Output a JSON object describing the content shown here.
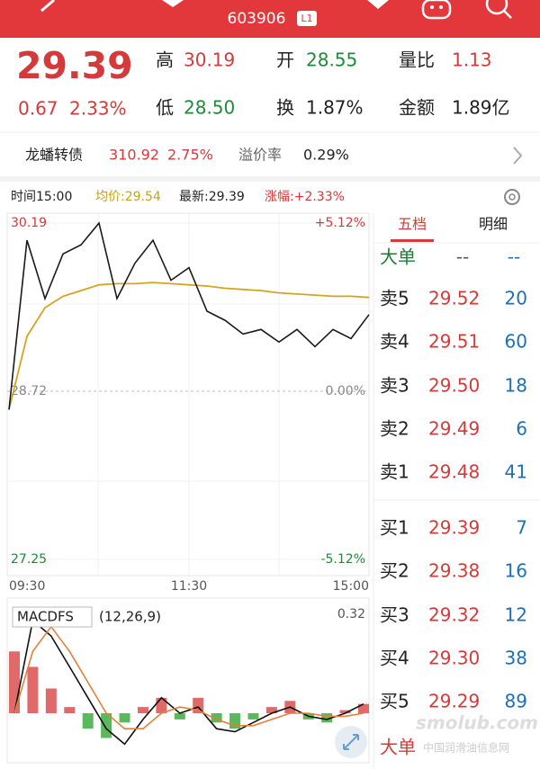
{
  "header": {
    "code": "603906",
    "badge": "L1"
  },
  "quote": {
    "price": "29.39",
    "change": "0.67",
    "change_pct": "2.33%",
    "stats": [
      {
        "label": "高",
        "value": "30.19",
        "color": "#d43a3a"
      },
      {
        "label": "开",
        "value": "28.55",
        "color": "#1f8a3a"
      },
      {
        "label": "量比",
        "value": "1.13",
        "color": "#d43a3a"
      },
      {
        "label": "低",
        "value": "28.50",
        "color": "#1f8a3a"
      },
      {
        "label": "换",
        "value": "1.87%",
        "color": "#222222"
      },
      {
        "label": "金额",
        "value": "1.89亿",
        "color": "#222222"
      }
    ]
  },
  "bond": {
    "name": "龙蟠转债",
    "price": "310.92",
    "change": "2.75%",
    "premium_label": "溢价率",
    "premium": "0.29%"
  },
  "info_bar": {
    "time": "时间15:00",
    "avg": "均价:29.54",
    "latest": "最新:29.39",
    "change": "涨幅:+2.33%"
  },
  "chart_data": [
    {
      "type": "line",
      "categories": [
        "09:30",
        null,
        null,
        null,
        null,
        null,
        null,
        null,
        null,
        null,
        "11:30",
        null,
        null,
        null,
        null,
        null,
        null,
        null,
        null,
        null,
        "15:00"
      ],
      "series": [
        {
          "color": "#1a1a1a",
          "values": [
            28.56,
            30.04,
            29.53,
            29.92,
            30.0,
            30.19,
            29.53,
            29.84,
            30.04,
            29.69,
            29.8,
            29.42,
            29.34,
            29.22,
            29.26,
            29.15,
            29.26,
            29.11,
            29.26,
            29.18,
            29.39
          ]
        },
        {
          "color": "#d4a51c",
          "values": [
            28.56,
            29.2,
            29.45,
            29.55,
            29.6,
            29.65,
            29.66,
            29.66,
            29.67,
            29.66,
            29.65,
            29.64,
            29.62,
            29.61,
            29.6,
            29.58,
            29.57,
            29.56,
            29.55,
            29.55,
            29.54
          ]
        }
      ],
      "ylim": [
        27.25,
        30.19
      ],
      "yticks": [
        27.25,
        28.72,
        30.19
      ],
      "y2lim": [
        -5.12,
        5.12
      ],
      "y2ticks": [
        {
          "value": -5.12,
          "label": "-5.12%"
        },
        {
          "value": 0,
          "label": "0.00%"
        },
        {
          "value": 5.12,
          "label": "+5.12%"
        }
      ],
      "grid": true
    },
    {
      "type": "macd",
      "title": "MACDFS",
      "subtitle": "(12,26,9)",
      "bars": {
        "color": "#e06a6a",
        "negative_color": "#5cb85c",
        "values": [
          0.2,
          0.15,
          0.08,
          0.02,
          -0.05,
          -0.08,
          -0.03,
          0.02,
          0.05,
          -0.02,
          0.05,
          -0.03,
          -0.05,
          -0.02,
          0.02,
          0.04,
          -0.02,
          -0.03,
          0.01,
          0.03
        ]
      },
      "series": [
        {
          "color": "#111111",
          "values": [
            0.0,
            0.3,
            0.25,
            0.15,
            0.05,
            -0.05,
            -0.1,
            -0.02,
            0.05,
            0.0,
            0.02,
            -0.05,
            -0.06,
            -0.03,
            0.0,
            0.02,
            -0.01,
            -0.02,
            0.0,
            0.03
          ]
        },
        {
          "color": "#e0803a",
          "values": [
            0.0,
            0.2,
            0.28,
            0.2,
            0.1,
            0.0,
            -0.05,
            -0.05,
            0.0,
            0.02,
            0.01,
            -0.02,
            -0.04,
            -0.04,
            -0.02,
            0.0,
            0.0,
            -0.01,
            -0.01,
            0.0
          ]
        }
      ],
      "ylim": [
        -0.32,
        0.32
      ],
      "yticks": [
        0.32
      ]
    }
  ],
  "order_book": {
    "tabs": [
      "五档",
      "明细"
    ],
    "big_order": {
      "label": "大单",
      "buy": "--",
      "sell": "--"
    },
    "sells": [
      {
        "label": "卖5",
        "price": "29.52",
        "volume": "20"
      },
      {
        "label": "卖4",
        "price": "29.51",
        "volume": "60"
      },
      {
        "label": "卖3",
        "price": "29.50",
        "volume": "18"
      },
      {
        "label": "卖2",
        "price": "29.49",
        "volume": "6"
      },
      {
        "label": "卖1",
        "price": "29.48",
        "volume": "41"
      }
    ],
    "buys": [
      {
        "label": "买1",
        "price": "29.39",
        "volume": "7"
      },
      {
        "label": "买2",
        "price": "29.38",
        "volume": "16"
      },
      {
        "label": "买3",
        "price": "29.32",
        "volume": "12"
      },
      {
        "label": "买4",
        "price": "29.30",
        "volume": "38"
      },
      {
        "label": "买5",
        "price": "29.29",
        "volume": "89"
      }
    ],
    "footer_label": "大单"
  },
  "watermark": {
    "site": "smolub.com",
    "name": "中国润滑油信息网"
  }
}
